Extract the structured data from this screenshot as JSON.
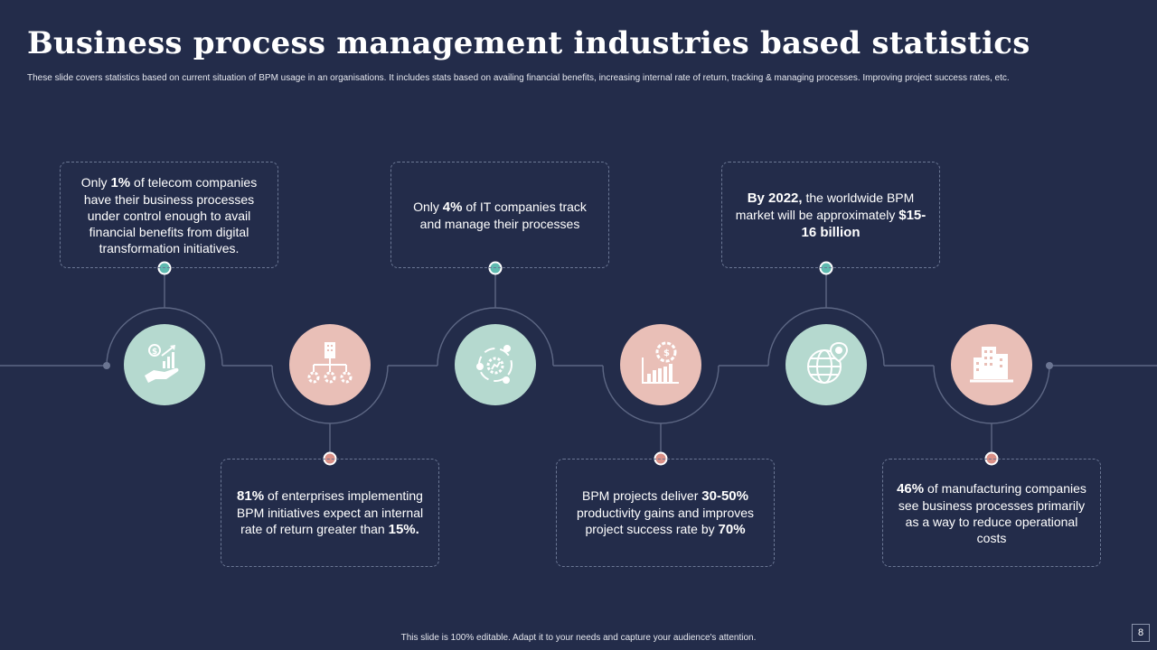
{
  "title": "Business process management industries based statistics",
  "subtitle": "These slide covers statistics based on current situation of BPM  usage in  an organisations. It includes stats based on availing financial benefits, increasing internal rate of return, tracking & managing  processes. Improving project success rates, etc.",
  "colors": {
    "background": "#232c4a",
    "teal": "#b5d9cf",
    "pink": "#e9bfb7",
    "teal_dot": "#5fbab0",
    "pink_dot": "#d98f86"
  },
  "cards": {
    "c1": {
      "pre": "Only ",
      "bold": "1%",
      "post": " of telecom companies have their business processes under control enough to avail financial benefits from digital transformation initiatives."
    },
    "c2": {
      "pre": "Only ",
      "bold": "4%",
      "post": " of IT companies track and manage their processes"
    },
    "c3": {
      "bold": "By 2022,",
      "mid": " the worldwide BPM market will be approximately ",
      "bold2": "$15-16 billion"
    },
    "c4": {
      "bold": "81%",
      "mid": " of enterprises implementing BPM initiatives expect an internal rate of return greater than ",
      "bold2": "15%."
    },
    "c5": {
      "pre": "BPM projects deliver ",
      "bold": "30-50%",
      "mid": " productivity gains and improves project success rate by ",
      "bold2": "70%"
    },
    "c6": {
      "bold": "46%",
      "post": " of manufacturing companies see business processes primarily as a way to reduce operational costs"
    }
  },
  "icons": [
    "money-growth-icon",
    "organization-hierarchy-icon",
    "process-cycle-icon",
    "financial-growth-icon",
    "global-location-icon",
    "buildings-icon"
  ],
  "footer": "This slide is 100% editable.  Adapt it to your needs and capture your audience's attention.",
  "page_number": "8"
}
